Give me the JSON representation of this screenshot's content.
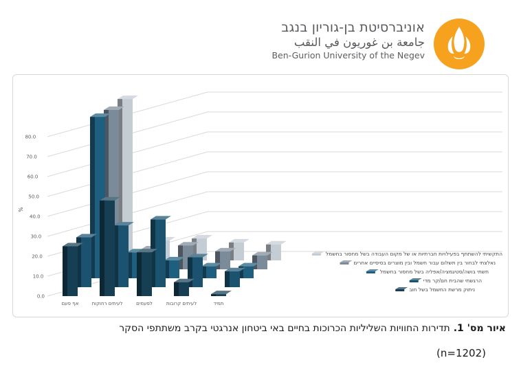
{
  "header": {
    "hebrew_name": "אוניברסיטת בן-גוריון בנגב",
    "arabic_name": "جامعة بن غوريون في النقب",
    "english_name": "Ben-Gurion University of the Negev"
  },
  "caption": {
    "figure_label": "איור מס' 1.",
    "text": "תדירות החוויות השליליות הכרוכות בחיים באי ביטחון אנרגטי בקרב משתתפי הסקר",
    "sample_size": "(n=1202)"
  },
  "colors": {
    "logo_orange": "#F6A21E",
    "header_text_gray": "#57585c",
    "gridline_gray": "#d9d9d9",
    "axis_text_gray": "#595959",
    "panel_border": "#d8d8d8"
  },
  "chart_data": {
    "type": "bar",
    "projection": "3d-clustered-columns",
    "title": "",
    "ylabel": "%",
    "ylim": [
      0,
      90
    ],
    "ytick_step": 10,
    "ytick_labels": [
      "0.0",
      "10.0",
      "20.0",
      "30.0",
      "40.0",
      "50.0",
      "60.0",
      "70.0",
      "80.0"
    ],
    "grid": true,
    "values_estimated_from_pixels": true,
    "categories": [
      "אף פעם",
      "לעיתים רחוקות",
      "לפעמים",
      "לעיתים קרובות",
      "תמיד"
    ],
    "depth_order": "series listed front-to-back; on-chart series labels appear at right, back series on top",
    "series": [
      {
        "name": "ניתוק מרשת החשמל בשל חוב",
        "values": [
          25,
          48,
          22,
          7,
          1
        ],
        "color": "#163f54"
      },
      {
        "name": "הרגשתי שהבית חם/קר מדי",
        "values": [
          25,
          31,
          34,
          15,
          8
        ],
        "color": "#1a5270"
      },
      {
        "name": "חשתי בושה/סטיגמציה/אפליה בשל מחסור בחשמל",
        "values": [
          81,
          13,
          9,
          6,
          6
        ],
        "color": "#1e5e7e"
      },
      {
        "name": "נאלצתי לבחור בין תשלום עבור חשמל ובין מוצרים בסיסיים אחרים",
        "values": [
          80,
          10,
          12,
          9,
          7
        ],
        "color": "#7c8b9a"
      },
      {
        "name": "התקשיתי להשתתף בפעילויות חברתיות או של מקום העבודה בשל מחסור בחשמל",
        "values": [
          81,
          10,
          11,
          9,
          8
        ],
        "color": "#c4ccd4"
      }
    ]
  }
}
